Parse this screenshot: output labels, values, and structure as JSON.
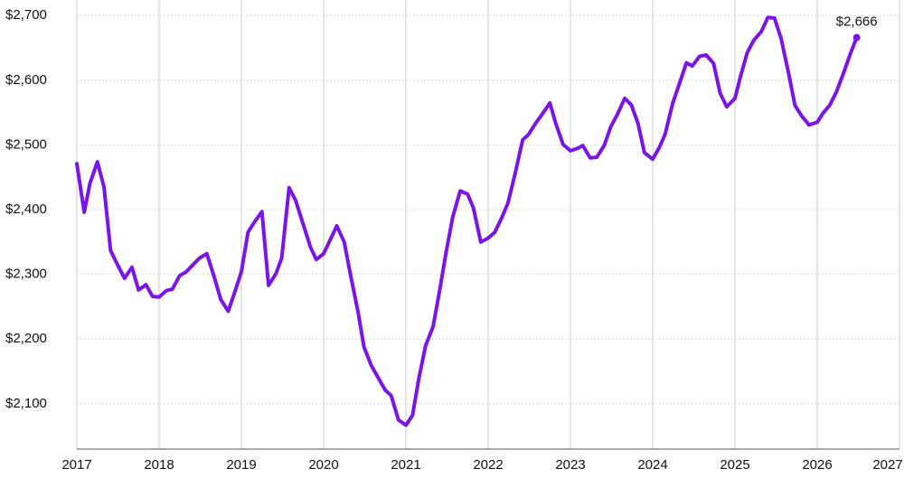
{
  "chart_data": {
    "type": "line",
    "x": [
      2017.0,
      2017.09,
      2017.16,
      2017.25,
      2017.33,
      2017.41,
      2017.49,
      2017.58,
      2017.67,
      2017.75,
      2017.84,
      2017.92,
      2018.0,
      2018.09,
      2018.16,
      2018.25,
      2018.33,
      2018.42,
      2018.49,
      2018.58,
      2018.67,
      2018.75,
      2018.84,
      2018.91,
      2019.0,
      2019.08,
      2019.16,
      2019.25,
      2019.33,
      2019.42,
      2019.49,
      2019.58,
      2019.66,
      2019.75,
      2019.84,
      2019.91,
      2020.0,
      2020.09,
      2020.16,
      2020.25,
      2020.33,
      2020.42,
      2020.49,
      2020.58,
      2020.66,
      2020.75,
      2020.82,
      2020.91,
      2021.0,
      2021.08,
      2021.16,
      2021.24,
      2021.33,
      2021.41,
      2021.49,
      2021.57,
      2021.66,
      2021.75,
      2021.82,
      2021.91,
      2022.0,
      2022.08,
      2022.16,
      2022.24,
      2022.33,
      2022.42,
      2022.49,
      2022.58,
      2022.66,
      2022.75,
      2022.82,
      2022.91,
      2023.0,
      2023.09,
      2023.15,
      2023.24,
      2023.32,
      2023.41,
      2023.49,
      2023.57,
      2023.66,
      2023.74,
      2023.82,
      2023.9,
      2024.0,
      2024.08,
      2024.15,
      2024.24,
      2024.32,
      2024.41,
      2024.48,
      2024.57,
      2024.65,
      2024.74,
      2024.82,
      2024.9,
      2025.0,
      2025.07,
      2025.15,
      2025.23,
      2025.32,
      2025.4,
      2025.48,
      2025.56,
      2025.65,
      2025.73,
      2025.81,
      2025.9,
      2026.0,
      2026.07,
      2026.15,
      2026.23,
      2026.32,
      2026.4,
      2026.48
    ],
    "series": [
      {
        "color": "#7b14e6",
        "values": [
          2471,
          2396,
          2441,
          2474,
          2435,
          2337,
          2316,
          2294,
          2311,
          2276,
          2284,
          2266,
          2265,
          2275,
          2277,
          2298,
          2304,
          2316,
          2325,
          2332,
          2296,
          2261,
          2243,
          2269,
          2304,
          2365,
          2381,
          2397,
          2283,
          2301,
          2325,
          2434,
          2414,
          2378,
          2342,
          2323,
          2332,
          2356,
          2375,
          2350,
          2297,
          2241,
          2188,
          2159,
          2141,
          2121,
          2113,
          2075,
          2067,
          2082,
          2141,
          2190,
          2219,
          2275,
          2335,
          2389,
          2429,
          2424,
          2403,
          2350,
          2356,
          2365,
          2386,
          2410,
          2457,
          2508,
          2516,
          2534,
          2548,
          2565,
          2534,
          2501,
          2491,
          2495,
          2499,
          2480,
          2481,
          2499,
          2528,
          2547,
          2572,
          2562,
          2534,
          2488,
          2478,
          2496,
          2516,
          2563,
          2593,
          2627,
          2622,
          2637,
          2639,
          2626,
          2580,
          2559,
          2572,
          2607,
          2643,
          2662,
          2675,
          2697,
          2696,
          2665,
          2612,
          2561,
          2545,
          2531,
          2535,
          2549,
          2561,
          2581,
          2611,
          2640,
          2666
        ],
        "value_labels": [
          null,
          null,
          null,
          null,
          null,
          null,
          null,
          null,
          null,
          null,
          null,
          null,
          null,
          null,
          null,
          null,
          null,
          null,
          null,
          null,
          null,
          null,
          null,
          null,
          null,
          null,
          null,
          null,
          null,
          null,
          null,
          null,
          null,
          null,
          null,
          null,
          null,
          null,
          null,
          null,
          null,
          null,
          null,
          null,
          null,
          null,
          null,
          null,
          null,
          null,
          null,
          null,
          null,
          null,
          null,
          null,
          null,
          null,
          null,
          null,
          null,
          null,
          null,
          null,
          null,
          null,
          null,
          null,
          null,
          null,
          null,
          null,
          null,
          null,
          null,
          null,
          null,
          null,
          null,
          null,
          null,
          null,
          null,
          null,
          null,
          null,
          null,
          null,
          null,
          null,
          null,
          null,
          null,
          null,
          null,
          null,
          null,
          null,
          null,
          null,
          null,
          null,
          null,
          null,
          null,
          null,
          null,
          null,
          null,
          null,
          null,
          null,
          null,
          null,
          "$2,666"
        ]
      }
    ],
    "xlim": [
      2017,
      2027
    ],
    "xticks": [
      2017,
      2018,
      2019,
      2020,
      2021,
      2022,
      2023,
      2024,
      2025,
      2026,
      2027
    ],
    "ylim": [
      2030,
      2724
    ],
    "yticks": [
      {
        "value": 2100,
        "label": "$2,100"
      },
      {
        "value": 2200,
        "label": "$2,200"
      },
      {
        "value": 2300,
        "label": "$2,300"
      },
      {
        "value": 2400,
        "label": "$2,400"
      },
      {
        "value": 2500,
        "label": "$2,500"
      },
      {
        "value": 2600,
        "label": "$2,600"
      },
      {
        "value": 2700,
        "label": "$2,700"
      }
    ],
    "grid": true
  }
}
